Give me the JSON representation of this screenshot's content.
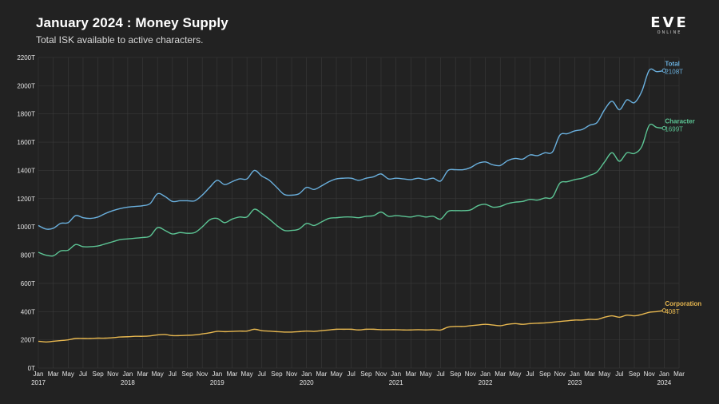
{
  "header": {
    "title": "January 2024 : Money Supply",
    "subtitle": "Total ISK available to active characters."
  },
  "logo": {
    "main": "EVE",
    "sub": "ONLINE"
  },
  "colors": {
    "background": "#222222",
    "grid": "#3a3a3a",
    "total": "#6ab0de",
    "character": "#5cc494",
    "corporation": "#e8b850"
  },
  "chart_data": {
    "type": "line",
    "title": "January 2024 : Money Supply",
    "subtitle": "Total ISK available to active characters.",
    "xlabel": "",
    "ylabel": "",
    "grid": true,
    "ylim": [
      0,
      2200
    ],
    "y_ticks": [
      0,
      200,
      400,
      600,
      800,
      1000,
      1200,
      1400,
      1600,
      1800,
      2000,
      2200
    ],
    "y_tick_labels": [
      "0T",
      "200T",
      "400T",
      "600T",
      "800T",
      "1000T",
      "1200T",
      "1400T",
      "1600T",
      "1800T",
      "2000T",
      "2200T"
    ],
    "x_range": [
      "2017-01",
      "2024-03"
    ],
    "x_month_labels": [
      "Jan",
      "Mar",
      "May",
      "Jul",
      "Sep",
      "Nov"
    ],
    "x_year_labels": [
      "2017",
      "2018",
      "2019",
      "2020",
      "2021",
      "2022",
      "2023",
      "2024"
    ],
    "x_last_labels": [
      "Jan",
      "Mar"
    ],
    "months": [
      "2017-01",
      "2017-02",
      "2017-03",
      "2017-04",
      "2017-05",
      "2017-06",
      "2017-07",
      "2017-08",
      "2017-09",
      "2017-10",
      "2017-11",
      "2017-12",
      "2018-01",
      "2018-02",
      "2018-03",
      "2018-04",
      "2018-05",
      "2018-06",
      "2018-07",
      "2018-08",
      "2018-09",
      "2018-10",
      "2018-11",
      "2018-12",
      "2019-01",
      "2019-02",
      "2019-03",
      "2019-04",
      "2019-05",
      "2019-06",
      "2019-07",
      "2019-08",
      "2019-09",
      "2019-10",
      "2019-11",
      "2019-12",
      "2020-01",
      "2020-02",
      "2020-03",
      "2020-04",
      "2020-05",
      "2020-06",
      "2020-07",
      "2020-08",
      "2020-09",
      "2020-10",
      "2020-11",
      "2020-12",
      "2021-01",
      "2021-02",
      "2021-03",
      "2021-04",
      "2021-05",
      "2021-06",
      "2021-07",
      "2021-08",
      "2021-09",
      "2021-10",
      "2021-11",
      "2021-12",
      "2022-01",
      "2022-02",
      "2022-03",
      "2022-04",
      "2022-05",
      "2022-06",
      "2022-07",
      "2022-08",
      "2022-09",
      "2022-10",
      "2022-11",
      "2022-12",
      "2023-01",
      "2023-02",
      "2023-03",
      "2023-04",
      "2023-05",
      "2023-06",
      "2023-07",
      "2023-08",
      "2023-09",
      "2023-10",
      "2023-11",
      "2023-12",
      "2024-01"
    ],
    "series": [
      {
        "name": "Total",
        "end_label": "2108T",
        "color": "#6ab0de",
        "values": [
          1010,
          985,
          990,
          1025,
          1030,
          1080,
          1065,
          1060,
          1070,
          1095,
          1115,
          1130,
          1140,
          1145,
          1150,
          1165,
          1235,
          1215,
          1180,
          1185,
          1185,
          1185,
          1225,
          1280,
          1330,
          1300,
          1320,
          1340,
          1340,
          1400,
          1360,
          1330,
          1280,
          1230,
          1225,
          1235,
          1280,
          1265,
          1290,
          1320,
          1340,
          1345,
          1345,
          1330,
          1345,
          1355,
          1375,
          1340,
          1345,
          1340,
          1335,
          1345,
          1335,
          1345,
          1325,
          1400,
          1405,
          1405,
          1420,
          1450,
          1460,
          1440,
          1435,
          1470,
          1485,
          1480,
          1510,
          1505,
          1525,
          1530,
          1650,
          1660,
          1680,
          1690,
          1720,
          1740,
          1830,
          1890,
          1830,
          1900,
          1880,
          1960,
          2110,
          2100,
          2108
        ]
      },
      {
        "name": "Character",
        "end_label": "1699T",
        "color": "#5cc494",
        "values": [
          820,
          800,
          795,
          830,
          835,
          875,
          860,
          860,
          865,
          880,
          895,
          910,
          915,
          920,
          925,
          935,
          995,
          975,
          950,
          960,
          955,
          960,
          1000,
          1050,
          1060,
          1030,
          1055,
          1070,
          1070,
          1125,
          1095,
          1055,
          1010,
          975,
          975,
          985,
          1025,
          1010,
          1035,
          1060,
          1065,
          1070,
          1070,
          1065,
          1075,
          1080,
          1105,
          1075,
          1080,
          1075,
          1070,
          1080,
          1070,
          1075,
          1055,
          1110,
          1115,
          1115,
          1120,
          1150,
          1160,
          1140,
          1145,
          1165,
          1175,
          1180,
          1195,
          1190,
          1205,
          1210,
          1310,
          1320,
          1335,
          1345,
          1365,
          1390,
          1460,
          1525,
          1465,
          1525,
          1520,
          1570,
          1720,
          1705,
          1699
        ]
      },
      {
        "name": "Corporation",
        "end_label": "408T",
        "color": "#e8b850",
        "values": [
          190,
          185,
          190,
          195,
          200,
          210,
          210,
          210,
          212,
          212,
          215,
          220,
          222,
          225,
          225,
          228,
          235,
          238,
          230,
          230,
          232,
          235,
          242,
          250,
          260,
          258,
          260,
          262,
          262,
          275,
          265,
          262,
          258,
          255,
          255,
          258,
          262,
          260,
          265,
          270,
          275,
          275,
          275,
          270,
          275,
          275,
          272,
          272,
          272,
          270,
          270,
          272,
          270,
          272,
          270,
          290,
          295,
          295,
          300,
          305,
          310,
          305,
          300,
          310,
          315,
          310,
          315,
          318,
          320,
          325,
          330,
          335,
          340,
          340,
          345,
          345,
          360,
          370,
          360,
          375,
          370,
          380,
          395,
          400,
          408
        ]
      }
    ]
  }
}
